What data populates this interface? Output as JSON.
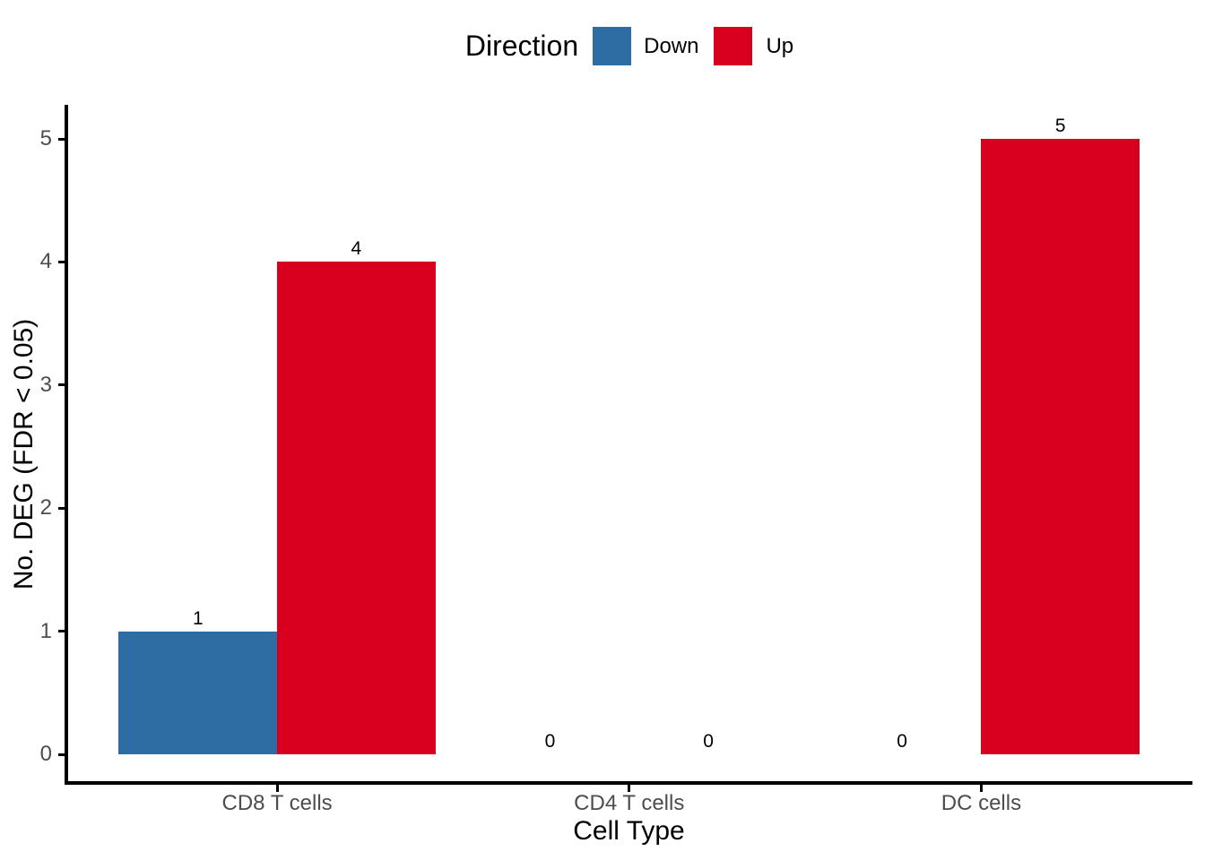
{
  "chart_data": {
    "type": "bar",
    "xlabel": "Cell Type",
    "ylabel": "No. DEG (FDR < 0.05)",
    "categories": [
      "CD8 T cells",
      "CD4 T cells",
      "DC cells"
    ],
    "series": [
      {
        "name": "Down",
        "color": "#2E6DA4",
        "values": [
          1,
          0,
          0
        ]
      },
      {
        "name": "Up",
        "color": "#D8001E",
        "values": [
          4,
          0,
          5
        ]
      }
    ],
    "yticks": [
      0,
      1,
      2,
      3,
      4,
      5
    ],
    "ylim": [
      0,
      5.25
    ],
    "value_labels_shown": true,
    "grid": false,
    "legend": {
      "title": "Direction",
      "position": "top"
    },
    "colors": {
      "down": "#2E6DA4",
      "up": "#D8001E",
      "axis_text": "#4D4D4D",
      "axis_line": "#000000",
      "value_label": "#000000"
    }
  }
}
